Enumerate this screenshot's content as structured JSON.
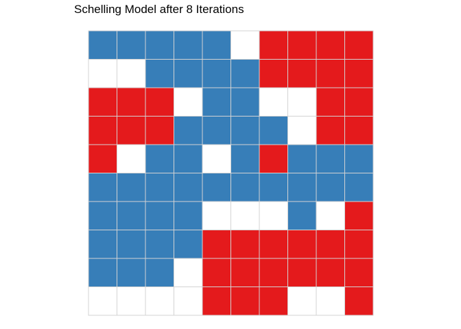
{
  "title": "Schelling Model after 8 Iterations",
  "chart_data": {
    "type": "heatmap",
    "title": "Schelling Model after 8 Iterations",
    "xlabel": "",
    "ylabel": "",
    "grid": true,
    "rows": 10,
    "cols": 10,
    "legend": "none",
    "colors": {
      "B": "#377eb8",
      "R": "#e41a1c",
      "E": "#ffffff",
      "gridline": "#d3d3d3"
    },
    "grid_values": [
      [
        "B",
        "B",
        "B",
        "B",
        "B",
        "E",
        "R",
        "R",
        "R",
        "R"
      ],
      [
        "E",
        "E",
        "B",
        "B",
        "B",
        "B",
        "R",
        "R",
        "R",
        "R"
      ],
      [
        "R",
        "R",
        "R",
        "E",
        "B",
        "B",
        "E",
        "E",
        "R",
        "R"
      ],
      [
        "R",
        "R",
        "R",
        "B",
        "B",
        "B",
        "B",
        "E",
        "R",
        "R"
      ],
      [
        "R",
        "E",
        "B",
        "B",
        "E",
        "B",
        "R",
        "B",
        "B",
        "B"
      ],
      [
        "B",
        "B",
        "B",
        "B",
        "B",
        "B",
        "B",
        "B",
        "B",
        "B"
      ],
      [
        "B",
        "B",
        "B",
        "B",
        "E",
        "E",
        "E",
        "B",
        "E",
        "R"
      ],
      [
        "B",
        "B",
        "B",
        "B",
        "R",
        "R",
        "R",
        "R",
        "R",
        "R"
      ],
      [
        "B",
        "B",
        "B",
        "E",
        "R",
        "R",
        "R",
        "R",
        "R",
        "R"
      ],
      [
        "E",
        "E",
        "E",
        "E",
        "R",
        "R",
        "R",
        "E",
        "E",
        "R"
      ]
    ]
  }
}
